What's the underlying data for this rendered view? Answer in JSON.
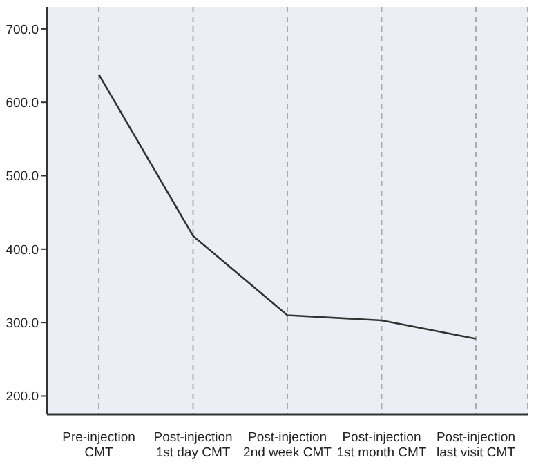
{
  "chart_data": {
    "type": "line",
    "categories": [
      "Pre-injection CMT",
      "Post-injection 1st day CMT",
      "Post-injection 2nd week CMT",
      "Post-injection 1st month CMT",
      "Post-injection last visit CMT"
    ],
    "series": [
      {
        "color": "#333333",
        "values": [
          638,
          418,
          310,
          303,
          278
        ]
      }
    ],
    "ylim": [
      175,
      730
    ],
    "yticks": [
      {
        "value": 200,
        "label": "200.0"
      },
      {
        "value": 300,
        "label": "300.0"
      },
      {
        "value": 400,
        "label": "400.0"
      },
      {
        "value": 500,
        "label": "500.0"
      },
      {
        "value": 600,
        "label": "600.0"
      },
      {
        "value": 700,
        "label": "700.0"
      }
    ],
    "grid": "x",
    "marker": "none",
    "line_style": "solid"
  }
}
